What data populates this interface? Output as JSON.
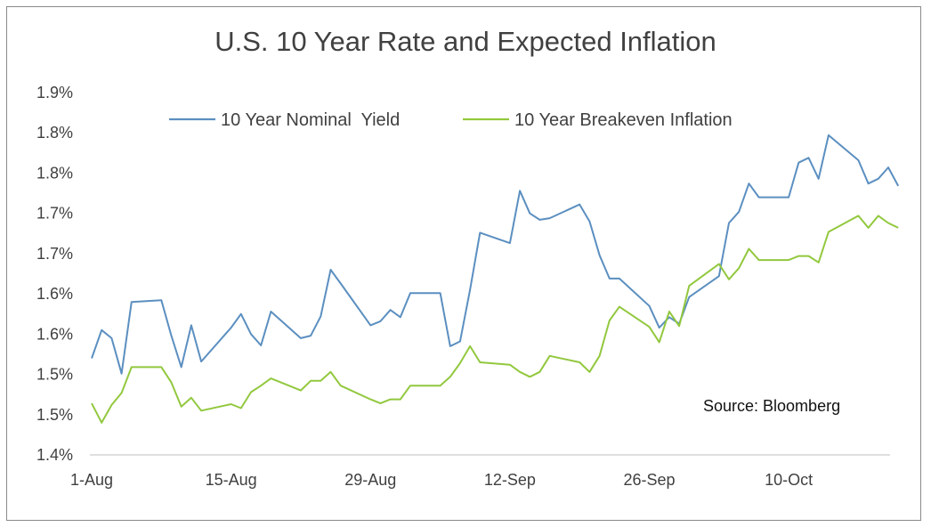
{
  "chart_data": {
    "type": "line",
    "title": "U.S. 10 Year Rate and Expected Inflation",
    "source": "Source: Bloomberg",
    "xlabel": "",
    "ylabel": "",
    "x_tick_labels": [
      "1-Aug",
      "15-Aug",
      "29-Aug",
      "12-Sep",
      "26-Sep",
      "10-Oct"
    ],
    "y_tick_labels": [
      "1.4%",
      "1.5%",
      "1.5%",
      "1.6%",
      "1.6%",
      "1.7%",
      "1.7%",
      "1.8%",
      "1.8%",
      "1.9%"
    ],
    "ylim": [
      1.4,
      1.85
    ],
    "xlim": [
      "2016-08-01",
      "2016-10-20"
    ],
    "grid": false,
    "legend_position": "top",
    "series": [
      {
        "name": "10 Year Nominal  Yield",
        "color": "#5b8fc0",
        "points": [
          [
            "2016-08-01",
            1.52
          ],
          [
            "2016-08-02",
            1.555
          ],
          [
            "2016-08-03",
            1.545
          ],
          [
            "2016-08-04",
            1.501
          ],
          [
            "2016-08-05",
            1.59
          ],
          [
            "2016-08-08",
            1.592
          ],
          [
            "2016-08-09",
            1.548
          ],
          [
            "2016-08-10",
            1.509
          ],
          [
            "2016-08-11",
            1.561
          ],
          [
            "2016-08-12",
            1.516
          ],
          [
            "2016-08-15",
            1.558
          ],
          [
            "2016-08-16",
            1.575
          ],
          [
            "2016-08-17",
            1.55
          ],
          [
            "2016-08-18",
            1.536
          ],
          [
            "2016-08-19",
            1.578
          ],
          [
            "2016-08-22",
            1.545
          ],
          [
            "2016-08-23",
            1.548
          ],
          [
            "2016-08-24",
            1.572
          ],
          [
            "2016-08-25",
            1.63
          ],
          [
            "2016-08-26",
            1.613
          ],
          [
            "2016-08-29",
            1.561
          ],
          [
            "2016-08-30",
            1.566
          ],
          [
            "2016-08-31",
            1.58
          ],
          [
            "2016-09-01",
            1.571
          ],
          [
            "2016-09-02",
            1.601
          ],
          [
            "2016-09-05",
            1.601
          ],
          [
            "2016-09-06",
            1.535
          ],
          [
            "2016-09-07",
            1.541
          ],
          [
            "2016-09-08",
            1.605
          ],
          [
            "2016-09-09",
            1.676
          ],
          [
            "2016-09-12",
            1.663
          ],
          [
            "2016-09-13",
            1.728
          ],
          [
            "2016-09-14",
            1.7
          ],
          [
            "2016-09-15",
            1.692
          ],
          [
            "2016-09-16",
            1.694
          ],
          [
            "2016-09-19",
            1.711
          ],
          [
            "2016-09-20",
            1.69
          ],
          [
            "2016-09-21",
            1.648
          ],
          [
            "2016-09-22",
            1.619
          ],
          [
            "2016-09-23",
            1.619
          ],
          [
            "2016-09-26",
            1.585
          ],
          [
            "2016-09-27",
            1.558
          ],
          [
            "2016-09-28",
            1.571
          ],
          [
            "2016-09-29",
            1.563
          ],
          [
            "2016-09-30",
            1.596
          ],
          [
            "2016-10-03",
            1.622
          ],
          [
            "2016-10-04",
            1.688
          ],
          [
            "2016-10-05",
            1.702
          ],
          [
            "2016-10-06",
            1.737
          ],
          [
            "2016-10-07",
            1.72
          ],
          [
            "2016-10-10",
            1.72
          ],
          [
            "2016-10-11",
            1.763
          ],
          [
            "2016-10-12",
            1.769
          ],
          [
            "2016-10-13",
            1.743
          ],
          [
            "2016-10-14",
            1.797
          ],
          [
            "2016-10-17",
            1.766
          ],
          [
            "2016-10-18",
            1.737
          ],
          [
            "2016-10-19",
            1.743
          ],
          [
            "2016-10-20",
            1.757
          ],
          [
            "2016-10-21",
            1.734
          ]
        ]
      },
      {
        "name": "10 Year Breakeven Inflation",
        "color": "#92c83e",
        "points": [
          [
            "2016-08-01",
            1.464
          ],
          [
            "2016-08-02",
            1.44
          ],
          [
            "2016-08-03",
            1.462
          ],
          [
            "2016-08-04",
            1.477
          ],
          [
            "2016-08-05",
            1.509
          ],
          [
            "2016-08-08",
            1.509
          ],
          [
            "2016-08-09",
            1.49
          ],
          [
            "2016-08-10",
            1.46
          ],
          [
            "2016-08-11",
            1.471
          ],
          [
            "2016-08-12",
            1.455
          ],
          [
            "2016-08-15",
            1.463
          ],
          [
            "2016-08-16",
            1.458
          ],
          [
            "2016-08-17",
            1.478
          ],
          [
            "2016-08-18",
            1.486
          ],
          [
            "2016-08-19",
            1.495
          ],
          [
            "2016-08-22",
            1.48
          ],
          [
            "2016-08-23",
            1.492
          ],
          [
            "2016-08-24",
            1.492
          ],
          [
            "2016-08-25",
            1.503
          ],
          [
            "2016-08-26",
            1.486
          ],
          [
            "2016-08-29",
            1.469
          ],
          [
            "2016-08-30",
            1.464
          ],
          [
            "2016-08-31",
            1.469
          ],
          [
            "2016-09-01",
            1.469
          ],
          [
            "2016-09-02",
            1.486
          ],
          [
            "2016-09-05",
            1.486
          ],
          [
            "2016-09-06",
            1.497
          ],
          [
            "2016-09-07",
            1.514
          ],
          [
            "2016-09-08",
            1.535
          ],
          [
            "2016-09-09",
            1.515
          ],
          [
            "2016-09-12",
            1.512
          ],
          [
            "2016-09-13",
            1.503
          ],
          [
            "2016-09-14",
            1.497
          ],
          [
            "2016-09-15",
            1.503
          ],
          [
            "2016-09-16",
            1.523
          ],
          [
            "2016-09-19",
            1.515
          ],
          [
            "2016-09-20",
            1.503
          ],
          [
            "2016-09-21",
            1.523
          ],
          [
            "2016-09-22",
            1.567
          ],
          [
            "2016-09-23",
            1.584
          ],
          [
            "2016-09-26",
            1.559
          ],
          [
            "2016-09-27",
            1.54
          ],
          [
            "2016-09-28",
            1.578
          ],
          [
            "2016-09-29",
            1.56
          ],
          [
            "2016-09-30",
            1.61
          ],
          [
            "2016-10-03",
            1.637
          ],
          [
            "2016-10-04",
            1.618
          ],
          [
            "2016-10-05",
            1.632
          ],
          [
            "2016-10-06",
            1.656
          ],
          [
            "2016-10-07",
            1.642
          ],
          [
            "2016-10-10",
            1.642
          ],
          [
            "2016-10-11",
            1.647
          ],
          [
            "2016-10-12",
            1.647
          ],
          [
            "2016-10-13",
            1.639
          ],
          [
            "2016-10-14",
            1.677
          ],
          [
            "2016-10-17",
            1.697
          ],
          [
            "2016-10-18",
            1.682
          ],
          [
            "2016-10-19",
            1.697
          ],
          [
            "2016-10-20",
            1.688
          ],
          [
            "2016-10-21",
            1.682
          ]
        ]
      }
    ]
  }
}
